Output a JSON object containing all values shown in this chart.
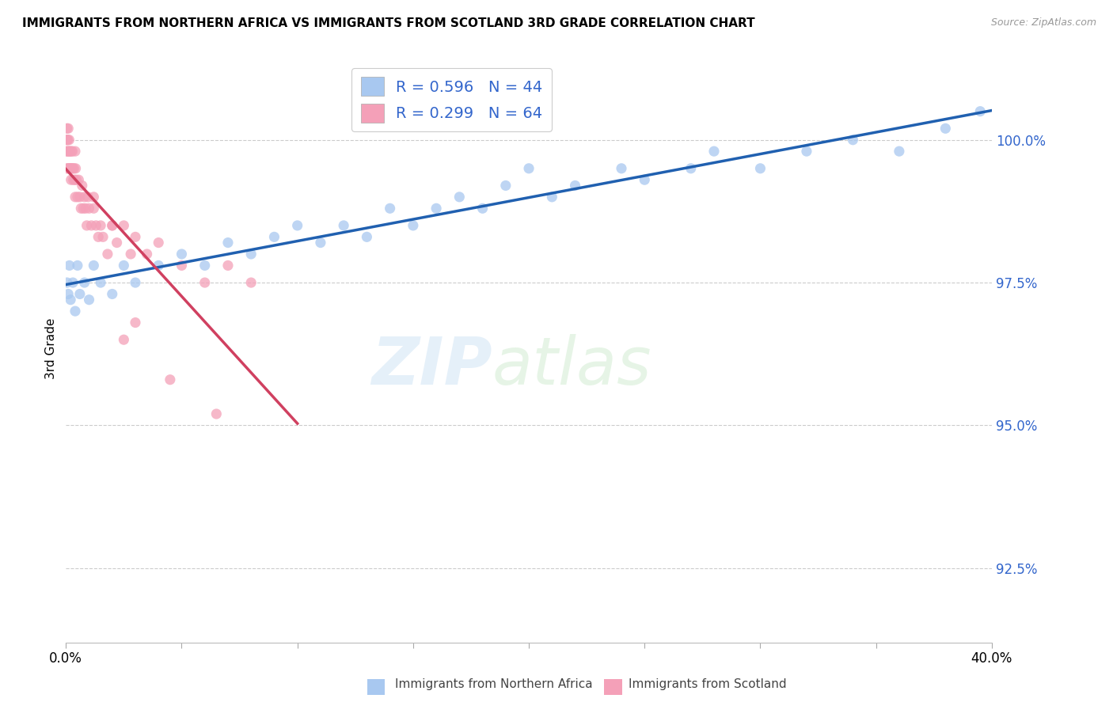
{
  "title": "IMMIGRANTS FROM NORTHERN AFRICA VS IMMIGRANTS FROM SCOTLAND 3RD GRADE CORRELATION CHART",
  "source": "Source: ZipAtlas.com",
  "ylabel": "3rd Grade",
  "yticks": [
    92.5,
    95.0,
    97.5,
    100.0
  ],
  "ytick_labels": [
    "92.5%",
    "95.0%",
    "97.5%",
    "100.0%"
  ],
  "xlim": [
    0.0,
    40.0
  ],
  "ylim": [
    91.2,
    101.5
  ],
  "blue_color": "#A8C8F0",
  "pink_color": "#F4A0B8",
  "blue_line_color": "#2060B0",
  "pink_line_color": "#D04060",
  "R_blue": 0.596,
  "N_blue": 44,
  "R_pink": 0.299,
  "N_pink": 64,
  "legend_R_color": "#3366CC",
  "watermark_zip": "ZIP",
  "watermark_atlas": "atlas",
  "blue_scatter_x": [
    0.05,
    0.1,
    0.15,
    0.2,
    0.3,
    0.4,
    0.5,
    0.6,
    0.8,
    1.0,
    1.2,
    1.5,
    2.0,
    2.5,
    3.0,
    4.0,
    5.0,
    6.0,
    7.0,
    8.0,
    9.0,
    10.0,
    11.0,
    12.0,
    13.0,
    14.0,
    15.0,
    16.0,
    17.0,
    18.0,
    19.0,
    20.0,
    21.0,
    22.0,
    24.0,
    25.0,
    27.0,
    28.0,
    30.0,
    32.0,
    34.0,
    36.0,
    38.0,
    39.5
  ],
  "blue_scatter_y": [
    97.5,
    97.3,
    97.8,
    97.2,
    97.5,
    97.0,
    97.8,
    97.3,
    97.5,
    97.2,
    97.8,
    97.5,
    97.3,
    97.8,
    97.5,
    97.8,
    98.0,
    97.8,
    98.2,
    98.0,
    98.3,
    98.5,
    98.2,
    98.5,
    98.3,
    98.8,
    98.5,
    98.8,
    99.0,
    98.8,
    99.2,
    99.5,
    99.0,
    99.2,
    99.5,
    99.3,
    99.5,
    99.8,
    99.5,
    99.8,
    100.0,
    99.8,
    100.2,
    100.5
  ],
  "pink_scatter_x": [
    0.02,
    0.03,
    0.04,
    0.05,
    0.06,
    0.07,
    0.08,
    0.09,
    0.1,
    0.12,
    0.13,
    0.14,
    0.15,
    0.16,
    0.18,
    0.2,
    0.22,
    0.24,
    0.25,
    0.28,
    0.3,
    0.32,
    0.35,
    0.38,
    0.4,
    0.42,
    0.45,
    0.5,
    0.55,
    0.6,
    0.65,
    0.7,
    0.75,
    0.8,
    0.85,
    0.9,
    0.95,
    1.0,
    1.1,
    1.2,
    1.3,
    1.4,
    1.5,
    1.6,
    1.8,
    2.0,
    2.2,
    2.5,
    2.8,
    3.0,
    3.5,
    4.0,
    5.0,
    6.0,
    7.0,
    8.0,
    2.5,
    3.0,
    4.5,
    6.5,
    0.25,
    0.4,
    1.2,
    2.0
  ],
  "pink_scatter_y": [
    99.8,
    100.0,
    100.2,
    99.5,
    100.0,
    99.8,
    100.0,
    99.5,
    100.2,
    99.8,
    99.5,
    100.0,
    99.8,
    99.5,
    99.8,
    99.5,
    99.3,
    99.8,
    99.5,
    99.8,
    99.5,
    99.3,
    99.5,
    99.3,
    99.0,
    99.5,
    99.3,
    99.0,
    99.3,
    99.0,
    98.8,
    99.2,
    98.8,
    99.0,
    98.8,
    98.5,
    99.0,
    98.8,
    98.5,
    98.8,
    98.5,
    98.3,
    98.5,
    98.3,
    98.0,
    98.5,
    98.2,
    98.5,
    98.0,
    98.3,
    98.0,
    98.2,
    97.8,
    97.5,
    97.8,
    97.5,
    96.5,
    96.8,
    95.8,
    95.2,
    99.5,
    99.8,
    99.0,
    98.5
  ]
}
